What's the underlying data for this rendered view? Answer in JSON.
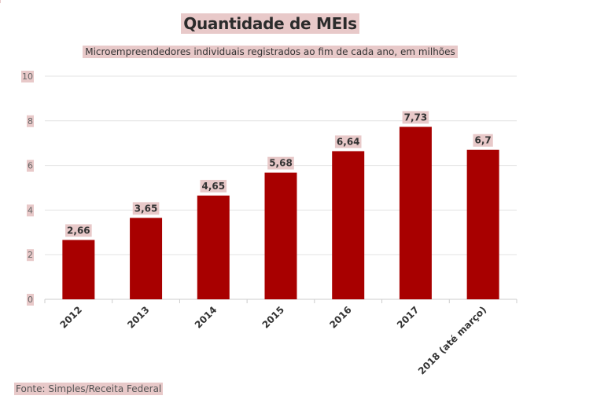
{
  "chart_data": {
    "type": "bar",
    "title": "Quantidade de MEIs",
    "subtitle": "Microempreendedores individuais registrados ao fim de cada ano, em milhões",
    "categories": [
      "2012",
      "2013",
      "2014",
      "2015",
      "2016",
      "2017",
      "2018 (até março)"
    ],
    "values": [
      2.66,
      3.65,
      4.65,
      5.68,
      6.64,
      7.73,
      6.7
    ],
    "value_labels": [
      "2,66",
      "3,65",
      "4,65",
      "5,68",
      "6,64",
      "7,73",
      "6,7"
    ],
    "yticks": [
      "0",
      "2",
      "4",
      "6",
      "8",
      "10"
    ],
    "ylim": [
      0,
      10
    ],
    "grid": true,
    "bar_color": "#a80000",
    "label_bg": "#e8c9c9"
  },
  "source": "Fonte: Simples/Receita Federal"
}
